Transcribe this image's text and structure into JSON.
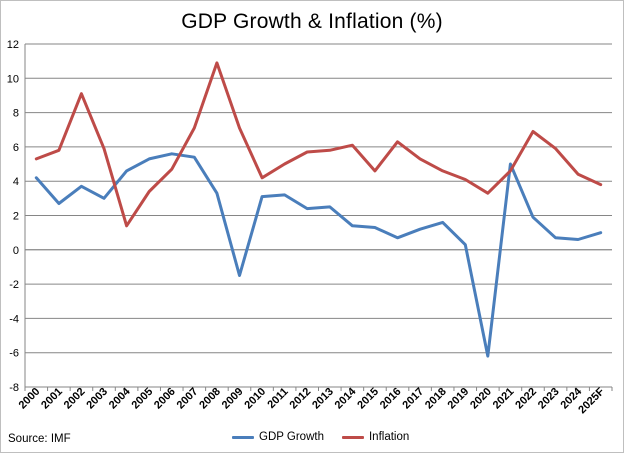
{
  "chart_data": {
    "type": "line",
    "title": "GDP Growth & Inflation (%)",
    "xlabel": "",
    "ylabel": "",
    "ylim": [
      -8,
      12
    ],
    "yticks": [
      -8,
      -6,
      -4,
      -2,
      0,
      2,
      4,
      6,
      8,
      10,
      12
    ],
    "grid": true,
    "legend": "bottom",
    "categories": [
      "2000",
      "2001",
      "2002",
      "2003",
      "2004",
      "2005",
      "2006",
      "2007",
      "2008",
      "2009",
      "2010",
      "2011",
      "2012",
      "2013",
      "2014",
      "2015",
      "2016",
      "2017",
      "2018",
      "2019",
      "2020",
      "2021",
      "2022",
      "2023",
      "2024",
      "2025F"
    ],
    "series": [
      {
        "name": "GDP Growth",
        "color": "#4a7ebb",
        "values": [
          4.2,
          2.7,
          3.7,
          3.0,
          4.6,
          5.3,
          5.6,
          5.4,
          3.3,
          -1.5,
          3.1,
          3.2,
          2.4,
          2.5,
          1.4,
          1.3,
          0.7,
          1.2,
          1.6,
          0.3,
          -6.2,
          5.0,
          1.9,
          0.7,
          0.6,
          1.0
        ]
      },
      {
        "name": "Inflation",
        "color": "#be4b48",
        "values": [
          5.3,
          5.8,
          9.1,
          5.9,
          1.4,
          3.4,
          4.7,
          7.1,
          10.9,
          7.1,
          4.2,
          5.0,
          5.7,
          5.8,
          6.1,
          4.6,
          6.3,
          5.3,
          4.6,
          4.1,
          3.3,
          4.6,
          6.9,
          5.9,
          4.4,
          3.8
        ]
      }
    ],
    "source": "Source: IMF"
  }
}
